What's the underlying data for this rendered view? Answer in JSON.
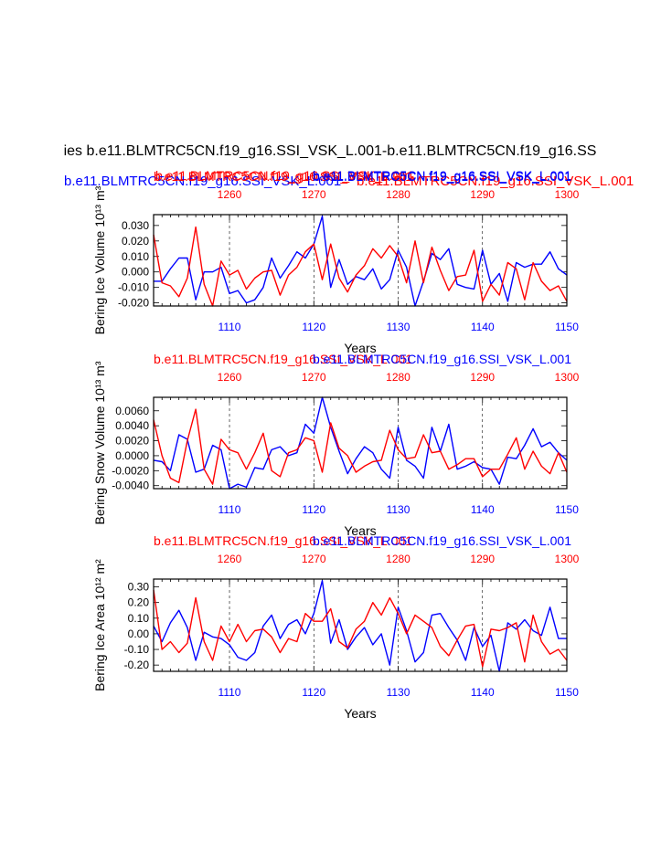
{
  "figure": {
    "main_title": "ies b.e11.BLMTRC5CN.f19_g16.SSI_VSK_L.001-b.e11.BLMTRC5CN.f19_g16.SS",
    "header_blue": "b.e11.BLMTRC5CN.f19_g16.SSI_VSK_L.001",
    "header_red": "b.e11.BLMTRC5CN.f19_g16.SSI_VSK_L.001",
    "header_red_overlap": "b.e11.BLMTRC5CN.f19_g16.SSI_VSK_L.001",
    "header_blue_overlap": "b.e11.BLMTRC5CN.f19_g16.SSI_VSK_L.001",
    "colors": {
      "blue": "#0000ff",
      "red": "#ff0000",
      "black": "#000000"
    }
  },
  "chart_data": [
    {
      "type": "line",
      "title_red": "b.e11.BLMTRC5CN.f19_g16.SSI_VSK_L.001",
      "title_blue": "b.e11.BLMTRC5CN.f19_g16.SSI_VSK_L.001",
      "ylabel": "Bering Ice Volume 10¹³ m³",
      "xlabel": "Years",
      "xlim_bottom": [
        1101,
        1150
      ],
      "xlim_top": [
        1251,
        1300
      ],
      "ylim": [
        -0.022,
        0.037
      ],
      "yticks": [
        -0.02,
        -0.01,
        0.0,
        0.01,
        0.02,
        0.03
      ],
      "ytick_labels": [
        "-0.020",
        "-0.010",
        "0.000",
        "0.010",
        "0.020",
        "0.030"
      ],
      "xticks_bottom": [
        1110,
        1120,
        1130,
        1140,
        1150
      ],
      "xtick_labels_bottom": [
        "1110",
        "1120",
        "1130",
        "1140",
        "1150"
      ],
      "xticks_top": [
        1260,
        1270,
        1280,
        1290,
        1300
      ],
      "xtick_labels_top": [
        "1260",
        "1270",
        "1280",
        "1290",
        "1300"
      ],
      "series": [
        {
          "name": "blue",
          "color": "#0000ff",
          "values": [
            -0.006,
            -0.006,
            0.002,
            0.009,
            0.009,
            -0.018,
            0.0,
            0.0,
            0.003,
            -0.014,
            -0.012,
            -0.02,
            -0.018,
            -0.01,
            0.009,
            -0.004,
            0.004,
            0.013,
            0.009,
            0.018,
            0.036,
            -0.01,
            0.008,
            -0.008,
            -0.003,
            -0.005,
            0.002,
            -0.011,
            -0.005,
            0.014,
            0.003,
            -0.022,
            -0.006,
            0.012,
            0.008,
            0.015,
            -0.008,
            -0.01,
            -0.011,
            0.014,
            -0.008,
            -0.001,
            -0.019,
            0.006,
            0.003,
            0.005,
            0.005,
            0.013,
            0.002,
            -0.002
          ]
        },
        {
          "name": "red",
          "color": "#ff0000",
          "values": [
            0.024,
            -0.007,
            -0.009,
            -0.016,
            -0.004,
            0.029,
            -0.008,
            -0.022,
            0.007,
            -0.002,
            0.001,
            -0.011,
            -0.004,
            0.0,
            0.001,
            -0.015,
            -0.002,
            0.003,
            0.013,
            0.018,
            -0.005,
            0.018,
            -0.004,
            -0.013,
            -0.002,
            0.004,
            0.015,
            0.009,
            0.017,
            0.01,
            -0.007,
            0.02,
            -0.007,
            0.016,
            0.001,
            -0.012,
            -0.003,
            -0.002,
            0.014,
            -0.019,
            -0.008,
            -0.015,
            0.006,
            0.002,
            -0.018,
            0.006,
            -0.006,
            -0.012,
            -0.009,
            -0.019
          ]
        }
      ]
    },
    {
      "type": "line",
      "title_red": "b.e11.BLMTRC5CN.f19_g16.SSI_VSK_L.001",
      "title_blue": "b.e11.BLMTRC5CN.f19_g16.SSI_VSK_L.001",
      "ylabel": "Bering Snow Volume 10¹³ m³",
      "xlabel": "Years",
      "xlim_bottom": [
        1101,
        1150
      ],
      "xlim_top": [
        1251,
        1300
      ],
      "ylim": [
        -0.0044,
        0.0078
      ],
      "yticks": [
        -0.004,
        -0.002,
        0.0,
        0.002,
        0.004,
        0.006
      ],
      "ytick_labels": [
        "-0.0040",
        "-0.0020",
        "0.0000",
        "0.0020",
        "0.0040",
        "0.0060"
      ],
      "xticks_bottom": [
        1110,
        1120,
        1130,
        1140,
        1150
      ],
      "xtick_labels_bottom": [
        "1110",
        "1120",
        "1130",
        "1140",
        "1150"
      ],
      "xticks_top": [
        1260,
        1270,
        1280,
        1290,
        1300
      ],
      "xtick_labels_top": [
        "1260",
        "1270",
        "1280",
        "1290",
        "1300"
      ],
      "series": [
        {
          "name": "blue",
          "color": "#0000ff",
          "values": [
            -0.0006,
            -0.0008,
            -0.002,
            0.0028,
            0.0022,
            -0.0022,
            -0.0018,
            0.0014,
            0.0008,
            -0.0044,
            -0.0038,
            -0.0042,
            -0.0016,
            -0.0018,
            0.0008,
            0.0012,
            0.0,
            0.0004,
            0.0042,
            0.003,
            0.0078,
            0.0038,
            0.0006,
            -0.0024,
            -0.0004,
            0.0012,
            0.0004,
            -0.0018,
            -0.003,
            0.0038,
            -0.0006,
            -0.0014,
            -0.003,
            0.0038,
            0.0006,
            0.0042,
            -0.0018,
            -0.0014,
            -0.0008,
            -0.0016,
            -0.0018,
            -0.0038,
            -0.0002,
            -0.0004,
            0.0014,
            0.0036,
            0.0012,
            0.0018,
            0.0004,
            -0.0006
          ]
        },
        {
          "name": "red",
          "color": "#ff0000",
          "values": [
            0.0048,
            0.0,
            -0.003,
            -0.0036,
            0.002,
            0.0062,
            -0.0018,
            -0.0038,
            0.0022,
            0.0008,
            0.0004,
            -0.0018,
            0.0004,
            0.003,
            -0.002,
            -0.0028,
            0.0004,
            0.0008,
            0.0024,
            0.002,
            -0.0022,
            0.0044,
            0.001,
            0.0,
            -0.0022,
            -0.0014,
            -0.0008,
            -0.0006,
            0.0034,
            0.0008,
            -0.0004,
            -0.0002,
            0.0028,
            0.0004,
            0.0006,
            -0.0018,
            -0.0012,
            -0.0004,
            -0.0004,
            -0.0028,
            -0.0018,
            -0.0018,
            0.0002,
            0.0024,
            -0.0018,
            0.0006,
            -0.0014,
            -0.0024,
            0.0004,
            -0.0022
          ]
        }
      ]
    },
    {
      "type": "line",
      "title_red": "b.e11.BLMTRC5CN.f19_g16.SSI_VSK_L.001",
      "title_blue": "b.e11.BLMTRC5CN.f19_g16.SSI_VSK_L.001",
      "ylabel": "Bering Ice Area 10¹² m²",
      "xlabel": "Years",
      "xlim_bottom": [
        1101,
        1150
      ],
      "xlim_top": [
        1251,
        1300
      ],
      "ylim": [
        -0.24,
        0.35
      ],
      "yticks": [
        -0.2,
        -0.1,
        0.0,
        0.1,
        0.2,
        0.3
      ],
      "ytick_labels": [
        "-0.20",
        "-0.10",
        "0.00",
        "0.10",
        "0.20",
        "0.30"
      ],
      "xticks_bottom": [
        1110,
        1120,
        1130,
        1140,
        1150
      ],
      "xtick_labels_bottom": [
        "1110",
        "1120",
        "1130",
        "1140",
        "1150"
      ],
      "xticks_top": [
        1260,
        1270,
        1280,
        1290,
        1300
      ],
      "xtick_labels_top": [
        "1260",
        "1270",
        "1280",
        "1290",
        "1300"
      ],
      "series": [
        {
          "name": "blue",
          "color": "#0000ff",
          "values": [
            0.05,
            -0.05,
            0.07,
            0.15,
            0.04,
            -0.17,
            0.01,
            -0.02,
            -0.03,
            -0.07,
            -0.15,
            -0.17,
            -0.12,
            0.05,
            0.12,
            -0.03,
            0.06,
            0.09,
            0.0,
            0.13,
            0.34,
            -0.06,
            0.09,
            -0.1,
            -0.02,
            0.04,
            -0.07,
            0.0,
            -0.2,
            0.17,
            0.02,
            -0.18,
            -0.12,
            0.12,
            0.13,
            0.04,
            -0.04,
            -0.17,
            0.04,
            -0.08,
            -0.01,
            -0.24,
            0.07,
            0.03,
            0.09,
            0.02,
            -0.01,
            0.17,
            -0.03,
            -0.03
          ]
        },
        {
          "name": "red",
          "color": "#ff0000",
          "values": [
            0.28,
            -0.1,
            -0.05,
            -0.12,
            -0.06,
            0.23,
            -0.05,
            -0.17,
            0.05,
            -0.05,
            0.06,
            -0.05,
            0.02,
            0.03,
            -0.02,
            -0.12,
            -0.03,
            -0.05,
            0.13,
            0.08,
            0.08,
            0.16,
            -0.05,
            -0.09,
            0.03,
            0.08,
            0.2,
            0.12,
            0.23,
            0.13,
            0.0,
            0.12,
            0.08,
            0.04,
            -0.08,
            -0.14,
            -0.04,
            0.05,
            0.06,
            -0.21,
            0.03,
            0.02,
            0.04,
            0.07,
            -0.18,
            0.12,
            -0.05,
            -0.13,
            -0.1,
            -0.17
          ]
        }
      ]
    }
  ]
}
